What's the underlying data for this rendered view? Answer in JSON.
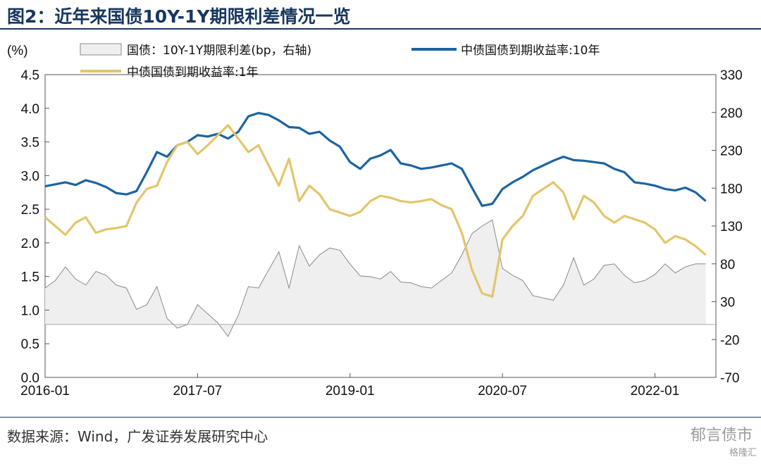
{
  "figure": {
    "title": "图2：近年来国债10Y-1Y期限利差情况一览",
    "source": "数据来源：Wind，广发证券发展研究中心",
    "watermark": "郁言债市",
    "watermark_sub": "格隆汇"
  },
  "chart_data": {
    "type": "line",
    "title": "近年来国债10Y-1Y期限利差情况一览",
    "ylabel": "(%)",
    "ylim": [
      0.0,
      4.5
    ],
    "y_ticks": [
      "0.0",
      "0.5",
      "1.0",
      "1.5",
      "2.0",
      "2.5",
      "3.0",
      "3.5",
      "4.0",
      "4.5"
    ],
    "y2lim": [
      -70,
      330
    ],
    "y2_ticks": [
      "-70",
      "-20",
      "30",
      "80",
      "130",
      "180",
      "230",
      "280",
      "330"
    ],
    "x_ticks": [
      "2016-01",
      "2017-07",
      "2019-01",
      "2020-07",
      "2022-01"
    ],
    "legend": [
      "国债：10Y-1Y期限利差(bp，右轴)",
      "中债国债到期收益率:10年",
      "中债国债到期收益率:1年"
    ],
    "colors": {
      "y10": "#1c64a0",
      "y1": "#e3c56a",
      "spread_fill": "#efefef",
      "spread_line": "#8a8a8a"
    },
    "series": [
      {
        "name": "中债国债到期收益率:10年",
        "axis": "left",
        "x": [
          2016.0,
          2016.1,
          2016.2,
          2016.3,
          2016.4,
          2016.5,
          2016.6,
          2016.7,
          2016.8,
          2016.9,
          2017.0,
          2017.1,
          2017.2,
          2017.3,
          2017.4,
          2017.5,
          2017.6,
          2017.7,
          2017.8,
          2017.9,
          2018.0,
          2018.1,
          2018.2,
          2018.3,
          2018.4,
          2018.5,
          2018.6,
          2018.7,
          2018.8,
          2018.9,
          2019.0,
          2019.1,
          2019.2,
          2019.3,
          2019.4,
          2019.5,
          2019.6,
          2019.7,
          2019.8,
          2019.9,
          2020.0,
          2020.1,
          2020.2,
          2020.3,
          2020.4,
          2020.5,
          2020.6,
          2020.7,
          2020.8,
          2020.9,
          2021.0,
          2021.1,
          2021.2,
          2021.3,
          2021.4,
          2021.5,
          2021.6,
          2021.7,
          2021.8,
          2021.9,
          2022.0,
          2022.1,
          2022.2,
          2022.3,
          2022.4,
          2022.5
        ],
        "values": [
          2.84,
          2.87,
          2.9,
          2.86,
          2.93,
          2.89,
          2.83,
          2.74,
          2.72,
          2.77,
          3.05,
          3.35,
          3.28,
          3.45,
          3.5,
          3.6,
          3.58,
          3.62,
          3.55,
          3.65,
          3.88,
          3.93,
          3.9,
          3.82,
          3.72,
          3.71,
          3.62,
          3.65,
          3.52,
          3.43,
          3.2,
          3.1,
          3.25,
          3.3,
          3.38,
          3.18,
          3.15,
          3.1,
          3.12,
          3.15,
          3.18,
          3.1,
          2.82,
          2.55,
          2.58,
          2.8,
          2.9,
          2.98,
          3.08,
          3.15,
          3.22,
          3.28,
          3.23,
          3.22,
          3.2,
          3.18,
          3.1,
          3.05,
          2.9,
          2.88,
          2.85,
          2.8,
          2.78,
          2.82,
          2.75,
          2.62
        ]
      },
      {
        "name": "中债国债到期收益率:1年",
        "axis": "left",
        "x": [
          2016.0,
          2016.1,
          2016.2,
          2016.3,
          2016.4,
          2016.5,
          2016.6,
          2016.7,
          2016.8,
          2016.9,
          2017.0,
          2017.1,
          2017.2,
          2017.3,
          2017.4,
          2017.5,
          2017.6,
          2017.7,
          2017.8,
          2017.9,
          2018.0,
          2018.1,
          2018.2,
          2018.3,
          2018.4,
          2018.5,
          2018.6,
          2018.7,
          2018.8,
          2018.9,
          2019.0,
          2019.1,
          2019.2,
          2019.3,
          2019.4,
          2019.5,
          2019.6,
          2019.7,
          2019.8,
          2019.9,
          2020.0,
          2020.1,
          2020.2,
          2020.3,
          2020.4,
          2020.5,
          2020.6,
          2020.7,
          2020.8,
          2020.9,
          2021.0,
          2021.1,
          2021.2,
          2021.3,
          2021.4,
          2021.5,
          2021.6,
          2021.7,
          2021.8,
          2021.9,
          2022.0,
          2022.1,
          2022.2,
          2022.3,
          2022.4,
          2022.5
        ],
        "values": [
          2.38,
          2.25,
          2.12,
          2.3,
          2.38,
          2.15,
          2.2,
          2.22,
          2.25,
          2.6,
          2.8,
          2.85,
          3.2,
          3.45,
          3.5,
          3.32,
          3.45,
          3.6,
          3.75,
          3.55,
          3.35,
          3.45,
          3.15,
          2.85,
          3.25,
          2.62,
          2.85,
          2.72,
          2.5,
          2.45,
          2.4,
          2.46,
          2.62,
          2.7,
          2.67,
          2.62,
          2.6,
          2.62,
          2.65,
          2.56,
          2.5,
          2.15,
          1.6,
          1.25,
          1.2,
          2.05,
          2.25,
          2.4,
          2.7,
          2.8,
          2.9,
          2.75,
          2.35,
          2.7,
          2.6,
          2.4,
          2.3,
          2.4,
          2.35,
          2.3,
          2.2,
          2.0,
          2.1,
          2.05,
          1.95,
          1.82
        ]
      },
      {
        "name": "国债：10Y-1Y期限利差(bp，右轴)",
        "axis": "right",
        "type": "area",
        "x": [
          2016.0,
          2016.1,
          2016.2,
          2016.3,
          2016.4,
          2016.5,
          2016.6,
          2016.7,
          2016.8,
          2016.9,
          2017.0,
          2017.1,
          2017.2,
          2017.3,
          2017.4,
          2017.5,
          2017.6,
          2017.7,
          2017.8,
          2017.9,
          2018.0,
          2018.1,
          2018.2,
          2018.3,
          2018.4,
          2018.5,
          2018.6,
          2018.7,
          2018.8,
          2018.9,
          2019.0,
          2019.1,
          2019.2,
          2019.3,
          2019.4,
          2019.5,
          2019.6,
          2019.7,
          2019.8,
          2019.9,
          2020.0,
          2020.1,
          2020.2,
          2020.3,
          2020.4,
          2020.5,
          2020.6,
          2020.7,
          2020.8,
          2020.9,
          2021.0,
          2021.1,
          2021.2,
          2021.3,
          2021.4,
          2021.5,
          2021.6,
          2021.7,
          2021.8,
          2021.9,
          2022.0,
          2022.1,
          2022.2,
          2022.3,
          2022.4,
          2022.5
        ],
        "values": [
          48,
          58,
          76,
          60,
          52,
          70,
          65,
          52,
          48,
          20,
          26,
          50,
          8,
          -5,
          0,
          26,
          14,
          2,
          -16,
          12,
          50,
          48,
          72,
          96,
          48,
          104,
          77,
          92,
          101,
          98,
          80,
          64,
          63,
          60,
          70,
          56,
          55,
          50,
          48,
          58,
          68,
          92,
          120,
          130,
          138,
          74,
          65,
          58,
          38,
          35,
          32,
          52,
          88,
          52,
          60,
          78,
          80,
          65,
          55,
          58,
          66,
          80,
          68,
          76,
          80,
          80
        ]
      }
    ]
  }
}
